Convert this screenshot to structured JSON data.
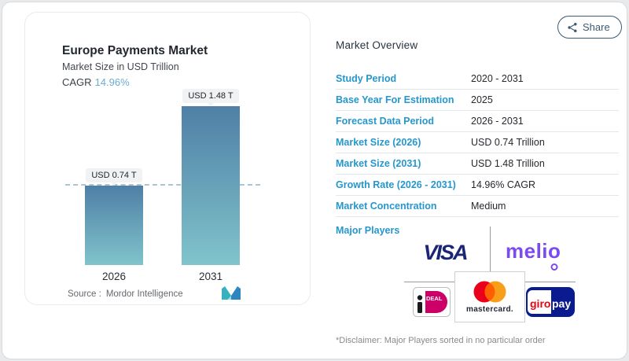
{
  "share": {
    "label": "Share"
  },
  "chart_card": {
    "title": "Europe Payments Market",
    "subtitle": "Market Size in USD Trillion",
    "cagr_label": "CAGR",
    "cagr_value": "14.96%",
    "source_label": "Source :",
    "source_value": "Mordor Intelligence"
  },
  "chart_data": {
    "type": "bar",
    "title": "Europe Payments Market",
    "ylabel": "Market Size in USD Trillion",
    "categories": [
      "2026",
      "2031"
    ],
    "values": [
      0.74,
      1.48
    ],
    "value_labels": [
      "USD 0.74 T",
      "USD 1.48 T"
    ],
    "cagr": "14.96%",
    "reference_line_value": 0.74,
    "bar_gradient_top": "#4f7fa6",
    "bar_gradient_bottom": "#80c4cb",
    "grid": "off",
    "legend": "none"
  },
  "overview": {
    "heading": "Market Overview",
    "rows": [
      {
        "label": "Study Period",
        "value": "2020 - 2031"
      },
      {
        "label": "Base Year For Estimation",
        "value": "2025"
      },
      {
        "label": "Forecast Data Period",
        "value": "2026 - 2031"
      },
      {
        "label": "Market Size (2026)",
        "value": "USD 0.74 Trillion"
      },
      {
        "label": "Market Size (2031)",
        "value": "USD 1.48 Trillion"
      },
      {
        "label": "Growth Rate (2026 - 2031)",
        "value": "14.96% CAGR"
      },
      {
        "label": "Market Concentration",
        "value": "Medium"
      }
    ],
    "major_players_label": "Major Players",
    "players": {
      "visa": "VISA",
      "melio_prefix": "meli",
      "melio_o": "o",
      "mastercard_word": "mastercard.",
      "ideal": "iDEAL",
      "giropay": "giropay"
    },
    "disclaimer": "*Disclaimer: Major Players sorted in no particular order"
  },
  "colors": {
    "accent_blue": "#2597cd",
    "cagr_blue": "#6cadd0",
    "visa_navy": "#1a2575",
    "melio_purple": "#7b4af0",
    "mastercard_red": "#EB001B",
    "mastercard_orange": "#F79E1B",
    "mastercard_overlap": "#FF5F00",
    "ideal_magenta": "#cc0066",
    "giropay_navy": "#0a1b8f",
    "giropay_red": "#e30613"
  }
}
